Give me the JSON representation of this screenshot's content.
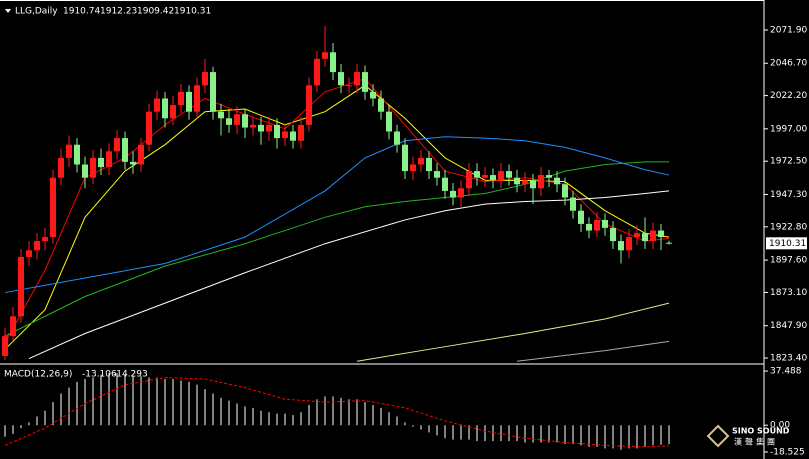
{
  "chart_data": [
    {
      "type": "candlestick",
      "title": "LLG,Daily",
      "up_color": "#ff1a1a",
      "down_color": "#8af08a",
      "open": [
        1825,
        1840,
        1855,
        1900,
        1905,
        1912,
        1915,
        1960,
        1975,
        1985,
        1970,
        1960,
        1975,
        1968,
        1980,
        1990,
        1972,
        1970,
        1985,
        2010,
        2020,
        2005,
        2015,
        2025,
        2010,
        2030,
        2040,
        2010,
        2005,
        2000,
        2008,
        1998,
        2000,
        1995,
        2000,
        1990,
        1995,
        1988,
        2000,
        2030,
        2050,
        2055,
        2040,
        2030,
        2030,
        2040,
        2025,
        2020,
        2010,
        1995,
        1985,
        1965,
        1970,
        1975,
        1965,
        1960,
        1950,
        1945,
        1952,
        1965,
        1960,
        1962,
        1958,
        1965,
        1960,
        1955,
        1958,
        1952,
        1962,
        1960,
        1955,
        1945,
        1935,
        1925,
        1920,
        1928,
        1922,
        1912,
        1905,
        1915,
        1918,
        1912,
        1920,
        1910.74
      ],
      "high": [
        1846,
        1862,
        1906,
        1912,
        1918,
        1922,
        1966,
        1982,
        1992,
        1990,
        1976,
        1981,
        1982,
        1986,
        1996,
        1995,
        1980,
        1990,
        2016,
        2026,
        2025,
        2022,
        2031,
        2030,
        2036,
        2050,
        2044,
        2016,
        2012,
        2014,
        2012,
        2006,
        2006,
        2006,
        2005,
        2001,
        2000,
        2006,
        2036,
        2056,
        2075,
        2062,
        2046,
        2036,
        2046,
        2045,
        2031,
        2026,
        2015,
        2000,
        1990,
        1976,
        1981,
        1980,
        1971,
        1966,
        1956,
        1958,
        1971,
        1971,
        1968,
        1967,
        1971,
        1970,
        1966,
        1964,
        1963,
        1968,
        1966,
        1965,
        1960,
        1950,
        1940,
        1930,
        1934,
        1933,
        1927,
        1917,
        1921,
        1924,
        1930,
        1926,
        1925,
        1912.23
      ],
      "low": [
        1822,
        1836,
        1850,
        1893,
        1898,
        1905,
        1910,
        1954,
        1968,
        1964,
        1952,
        1955,
        1962,
        1962,
        1974,
        1966,
        1963,
        1964,
        1980,
        2004,
        1998,
        2000,
        2009,
        2004,
        2005,
        2024,
        2004,
        1992,
        1994,
        1993,
        1990,
        1992,
        1985,
        1988,
        1982,
        1984,
        1982,
        1982,
        1995,
        2025,
        2044,
        2034,
        2024,
        2024,
        2024,
        2019,
        2014,
        2004,
        1989,
        1979,
        1959,
        1958,
        1964,
        1959,
        1954,
        1944,
        1939,
        1938,
        1946,
        1954,
        1953,
        1952,
        1952,
        1954,
        1949,
        1949,
        1940,
        1946,
        1953,
        1949,
        1939,
        1929,
        1919,
        1914,
        1915,
        1916,
        1906,
        1895,
        1899,
        1909,
        1906,
        1906,
        1905,
        1909.42
      ],
      "close": [
        1840,
        1855,
        1900,
        1905,
        1912,
        1915,
        1960,
        1975,
        1985,
        1970,
        1960,
        1975,
        1968,
        1980,
        1990,
        1972,
        1970,
        1985,
        2010,
        2020,
        2005,
        2015,
        2025,
        2010,
        2030,
        2040,
        2010,
        2005,
        2000,
        2008,
        1998,
        2000,
        1995,
        2000,
        1990,
        1995,
        1988,
        2000,
        2030,
        2050,
        2055,
        2040,
        2030,
        2030,
        2040,
        2025,
        2020,
        2010,
        1995,
        1985,
        1965,
        1970,
        1975,
        1965,
        1960,
        1950,
        1945,
        1952,
        1965,
        1960,
        1962,
        1958,
        1965,
        1960,
        1955,
        1958,
        1952,
        1962,
        1960,
        1955,
        1945,
        1935,
        1925,
        1920,
        1928,
        1922,
        1912,
        1905,
        1915,
        1918,
        1912,
        1920,
        1915,
        1910.31
      ],
      "overlays": [
        {
          "color": "#ffff00",
          "x": [
            0,
            5,
            10,
            15,
            20,
            25,
            30,
            35,
            40,
            45,
            50,
            55,
            60,
            65,
            70,
            75,
            80,
            83
          ],
          "values": [
            1830,
            1860,
            1930,
            1965,
            1985,
            2010,
            2012,
            2000,
            2010,
            2030,
            2005,
            1975,
            1958,
            1958,
            1957,
            1935,
            1918,
            1915
          ]
        },
        {
          "color": "#ff0000",
          "x": [
            0,
            5,
            10,
            15,
            20,
            25,
            30,
            35,
            40,
            45,
            50,
            55,
            60,
            65,
            70,
            75,
            80,
            83
          ],
          "values": [
            1835,
            1890,
            1960,
            1975,
            2000,
            2020,
            2008,
            1997,
            2025,
            2035,
            2000,
            1965,
            1957,
            1960,
            1955,
            1925,
            1912,
            1914
          ]
        },
        {
          "color": "#1e90ff",
          "x": [
            0,
            10,
            20,
            30,
            40,
            45,
            50,
            55,
            60,
            65,
            70,
            75,
            80,
            83
          ],
          "values": [
            1873,
            1884,
            1895,
            1915,
            1950,
            1975,
            1988,
            1991,
            1990,
            1988,
            1983,
            1975,
            1966,
            1962
          ]
        },
        {
          "color": "#22b422",
          "x": [
            0,
            10,
            20,
            30,
            40,
            45,
            50,
            55,
            60,
            65,
            70,
            75,
            80,
            83
          ],
          "values": [
            1840,
            1870,
            1893,
            1910,
            1930,
            1938,
            1942,
            1945,
            1948,
            1955,
            1965,
            1970,
            1972,
            1972
          ]
        },
        {
          "color": "#ffffff",
          "x": [
            3,
            10,
            20,
            30,
            40,
            50,
            55,
            60,
            65,
            70,
            75,
            80,
            83
          ],
          "values": [
            1823,
            1842,
            1865,
            1888,
            1910,
            1928,
            1935,
            1940,
            1942,
            1943,
            1945,
            1948,
            1950
          ]
        },
        {
          "color": "#f0e68c",
          "x": [
            44,
            55,
            65,
            75,
            83
          ],
          "values": [
            1821,
            1832,
            1842,
            1853,
            1865
          ]
        },
        {
          "color": "#a9a9a9",
          "x": [
            64,
            75,
            83
          ],
          "values": [
            1821,
            1829,
            1836
          ]
        }
      ],
      "ylim": [
        1820.4,
        2094.6
      ],
      "yticks": [
        {
          "value": 2071.9,
          "label": "2071.90"
        },
        {
          "value": 2046.7,
          "label": "2046.70"
        },
        {
          "value": 2022.2,
          "label": "2022.20"
        },
        {
          "value": 1997,
          "label": "1997.00"
        },
        {
          "value": 1972.5,
          "label": "1972.50"
        },
        {
          "value": 1947.3,
          "label": "1947.30"
        },
        {
          "value": 1922.8,
          "label": "1922.80"
        },
        {
          "value": 1897.6,
          "label": "1897.60"
        },
        {
          "value": 1873.1,
          "label": "1873.10"
        },
        {
          "value": 1847.9,
          "label": "1847.90"
        },
        {
          "value": 1823.4,
          "label": "1823.40"
        }
      ]
    },
    {
      "type": "macd",
      "title": "MACD(12,26,9)",
      "color": "#ffffff",
      "values": [
        -8,
        -6,
        -2,
        2,
        6,
        10,
        16,
        22,
        26,
        30,
        32,
        33,
        35,
        36,
        36,
        35,
        34,
        34,
        33,
        33,
        32,
        32,
        31,
        30,
        28,
        25,
        22,
        19,
        17,
        15,
        13,
        12,
        10,
        9,
        8,
        8,
        7,
        9,
        14,
        18,
        20,
        20,
        19,
        18,
        18,
        16,
        14,
        12,
        9,
        6,
        2,
        -1,
        -3,
        -5,
        -7,
        -9,
        -10,
        -10,
        -10,
        -11,
        -11,
        -11,
        -11,
        -11,
        -11,
        -12,
        -12,
        -12,
        -12,
        -12,
        -13,
        -13,
        -14,
        -15,
        -15,
        -16,
        -16,
        -17,
        -16,
        -16,
        -15,
        -14,
        -13.5,
        -13.106
      ],
      "signal": {
        "color": "#ff0000",
        "x": [
          0,
          5,
          10,
          15,
          20,
          25,
          30,
          35,
          40,
          45,
          50,
          55,
          60,
          65,
          70,
          75,
          80,
          83
        ],
        "values": [
          -14,
          -2,
          15,
          28,
          33,
          32,
          26,
          18,
          16,
          17,
          12,
          3,
          -4,
          -9,
          -12,
          -14,
          -15,
          -14.293
        ]
      },
      "ylim": [
        -23.4,
        41.0
      ],
      "yticks": [
        37.488,
        {
          "value": 0,
          "label": "0.00"
        },
        -18.525
      ]
    }
  ],
  "watermark": {
    "brand": "SINO SOUND",
    "chinese": "漢聲集團"
  }
}
